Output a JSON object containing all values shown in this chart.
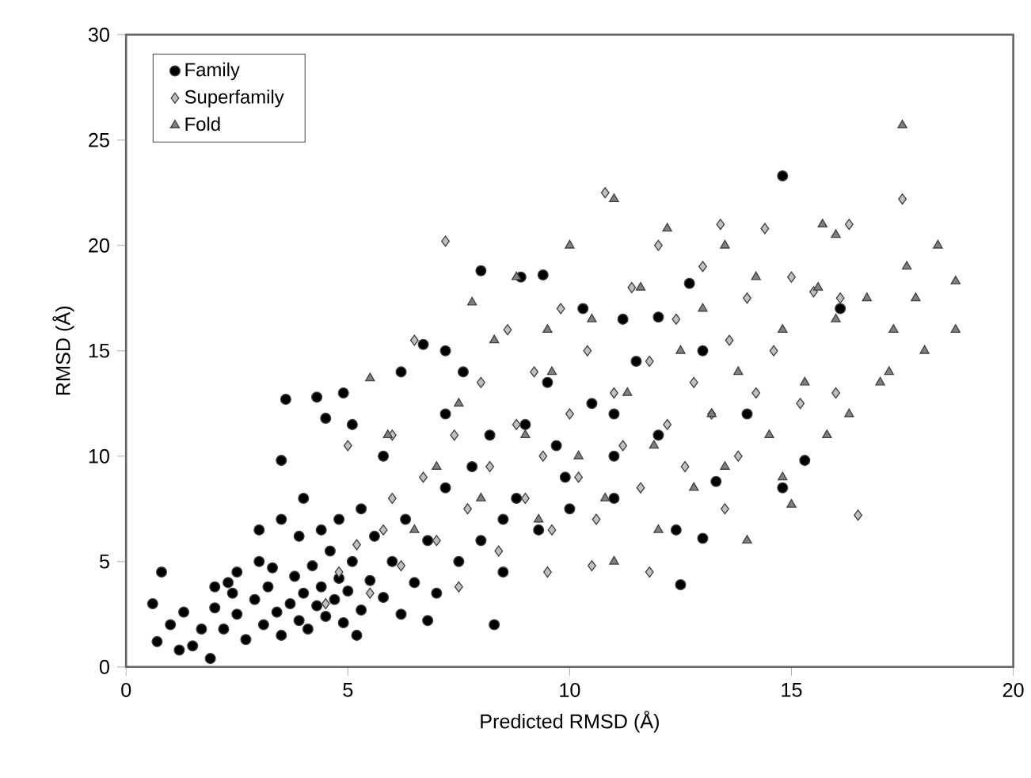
{
  "chart_data": {
    "type": "scatter",
    "xlabel": "Predicted RMSD (Å)",
    "ylabel": "RMSD (Å)",
    "xlim": [
      0,
      20
    ],
    "ylim": [
      0,
      30
    ],
    "xticks": [
      0,
      5,
      10,
      15,
      20
    ],
    "yticks": [
      0,
      5,
      10,
      15,
      20,
      25,
      30
    ],
    "grid": false,
    "legend": "top left",
    "series": [
      {
        "name": "Family",
        "color": "#000000",
        "marker": "circle",
        "x": [
          0.6,
          0.8,
          0.7,
          1.0,
          1.2,
          1.5,
          1.9,
          1.3,
          2.0,
          2.3,
          2.5,
          3.0,
          3.5,
          3.6,
          3.9,
          4.3,
          4.5,
          4.9,
          4.8,
          5.1,
          5.3,
          5.8,
          6.2,
          6.7,
          7.2,
          7.6,
          8.0,
          8.9,
          9.4,
          10.3,
          12.7,
          14.8,
          11.2,
          12.0,
          16.1,
          7.2,
          8.5,
          9.5,
          11.0,
          12.5,
          14.8,
          13.3,
          13.0,
          15.3,
          12.4,
          11.0,
          9.9,
          8.3,
          6.8,
          5.2,
          2.2,
          2.5,
          2.7,
          2.9,
          3.1,
          3.2,
          3.4,
          3.5,
          3.7,
          3.8,
          3.9,
          4.0,
          4.1,
          4.2,
          4.3,
          4.4,
          4.5,
          4.6,
          4.7,
          4.8,
          4.9,
          5.0,
          5.1,
          5.3,
          5.5,
          5.6,
          5.8,
          6.0,
          6.2,
          6.3,
          6.5,
          6.8,
          7.0,
          7.2,
          7.5,
          7.8,
          8.0,
          8.2,
          8.5,
          8.8,
          9.0,
          9.3,
          9.7,
          10.0,
          10.5,
          11.0,
          11.5,
          12.0,
          13.0,
          14.0,
          3.0,
          3.5,
          4.0,
          4.4,
          1.7,
          2.0,
          3.3,
          2.4
        ],
        "values": [
          3.0,
          4.5,
          1.2,
          2.0,
          0.8,
          1.0,
          0.4,
          2.6,
          3.8,
          4.0,
          4.5,
          5.0,
          9.8,
          12.7,
          6.2,
          12.8,
          11.8,
          13.0,
          7.0,
          11.5,
          7.5,
          10.0,
          14.0,
          15.3,
          15.0,
          14.0,
          18.8,
          18.5,
          18.6,
          17.0,
          18.2,
          23.3,
          16.5,
          16.6,
          17.0,
          12.0,
          7.0,
          13.5,
          12.0,
          3.9,
          8.5,
          8.8,
          6.1,
          9.8,
          6.5,
          10.0,
          9.0,
          2.0,
          2.2,
          1.5,
          1.8,
          2.5,
          1.3,
          3.2,
          2.0,
          3.8,
          2.6,
          1.5,
          3.0,
          4.3,
          2.2,
          3.5,
          1.8,
          4.8,
          2.9,
          3.8,
          2.4,
          5.5,
          3.2,
          4.2,
          2.1,
          3.6,
          5.0,
          2.7,
          4.1,
          6.2,
          3.3,
          5.0,
          2.5,
          7.0,
          4.0,
          6.0,
          3.5,
          8.5,
          5.0,
          9.5,
          6.0,
          11.0,
          4.5,
          8.0,
          11.5,
          6.5,
          10.5,
          7.5,
          12.5,
          8.0,
          14.5,
          11.0,
          15.0,
          12.0,
          6.5,
          7.0,
          8.0,
          6.5,
          1.8,
          2.8,
          4.7,
          3.5
        ]
      },
      {
        "name": "Superfamily",
        "color": "#c0c0c0",
        "marker": "diamond",
        "x": [
          4.5,
          4.8,
          5.0,
          5.2,
          5.5,
          5.8,
          6.0,
          6.2,
          6.5,
          6.7,
          7.0,
          7.2,
          7.4,
          7.7,
          8.0,
          8.2,
          8.4,
          8.6,
          8.8,
          9.0,
          9.2,
          9.4,
          9.6,
          9.8,
          10.0,
          10.2,
          10.4,
          10.6,
          10.8,
          11.0,
          11.2,
          11.4,
          11.6,
          11.8,
          12.0,
          12.2,
          12.4,
          12.6,
          12.8,
          13.0,
          13.2,
          13.4,
          13.6,
          13.8,
          14.0,
          14.2,
          14.4,
          14.6,
          15.0,
          15.2,
          15.5,
          16.0,
          16.3,
          16.5,
          17.5,
          16.1,
          9.5,
          10.5,
          11.8,
          7.5,
          6.0,
          13.5
        ],
        "values": [
          3.0,
          4.5,
          10.5,
          5.8,
          3.5,
          6.5,
          8.0,
          4.8,
          15.5,
          9.0,
          6.0,
          20.2,
          11.0,
          7.5,
          13.5,
          9.5,
          5.5,
          16.0,
          11.5,
          8.0,
          14.0,
          10.0,
          6.5,
          17.0,
          12.0,
          9.0,
          15.0,
          7.0,
          22.5,
          13.0,
          10.5,
          18.0,
          8.5,
          14.5,
          20.0,
          11.5,
          16.5,
          9.5,
          13.5,
          19.0,
          12.0,
          21.0,
          15.5,
          10.0,
          17.5,
          13.0,
          20.8,
          15.0,
          18.5,
          12.5,
          17.8,
          13.0,
          21.0,
          7.2,
          22.2,
          17.5,
          4.5,
          4.8,
          4.5,
          3.8,
          11.0,
          7.5
        ]
      },
      {
        "name": "Fold",
        "color": "#808080",
        "marker": "triangle",
        "x": [
          5.5,
          5.9,
          6.5,
          7.0,
          7.5,
          8.0,
          8.3,
          8.8,
          9.0,
          9.3,
          9.6,
          10.0,
          10.2,
          10.5,
          10.8,
          11.0,
          11.3,
          11.6,
          11.9,
          12.2,
          12.5,
          12.8,
          13.0,
          13.2,
          13.5,
          13.8,
          14.0,
          14.2,
          14.5,
          14.8,
          15.0,
          15.3,
          15.6,
          15.8,
          16.0,
          16.3,
          16.7,
          17.0,
          17.3,
          17.5,
          17.6,
          17.8,
          18.0,
          18.3,
          18.7,
          18.7,
          17.2,
          16.0,
          14.8,
          12.0,
          11.0,
          13.5,
          15.7,
          9.5,
          7.8
        ],
        "values": [
          13.7,
          11.0,
          6.5,
          9.5,
          12.5,
          8.0,
          15.5,
          18.5,
          11.0,
          7.0,
          14.0,
          20.0,
          10.0,
          16.5,
          8.0,
          22.2,
          13.0,
          18.0,
          10.5,
          20.8,
          15.0,
          8.5,
          17.0,
          12.0,
          20.0,
          14.0,
          6.0,
          18.5,
          11.0,
          16.0,
          7.7,
          13.5,
          18.0,
          11.0,
          16.5,
          12.0,
          17.5,
          13.5,
          16.0,
          25.7,
          19.0,
          17.5,
          15.0,
          20.0,
          18.3,
          16.0,
          14.0,
          20.5,
          9.0,
          6.5,
          5.0,
          9.5,
          21.0,
          16.0,
          17.3
        ]
      }
    ]
  }
}
